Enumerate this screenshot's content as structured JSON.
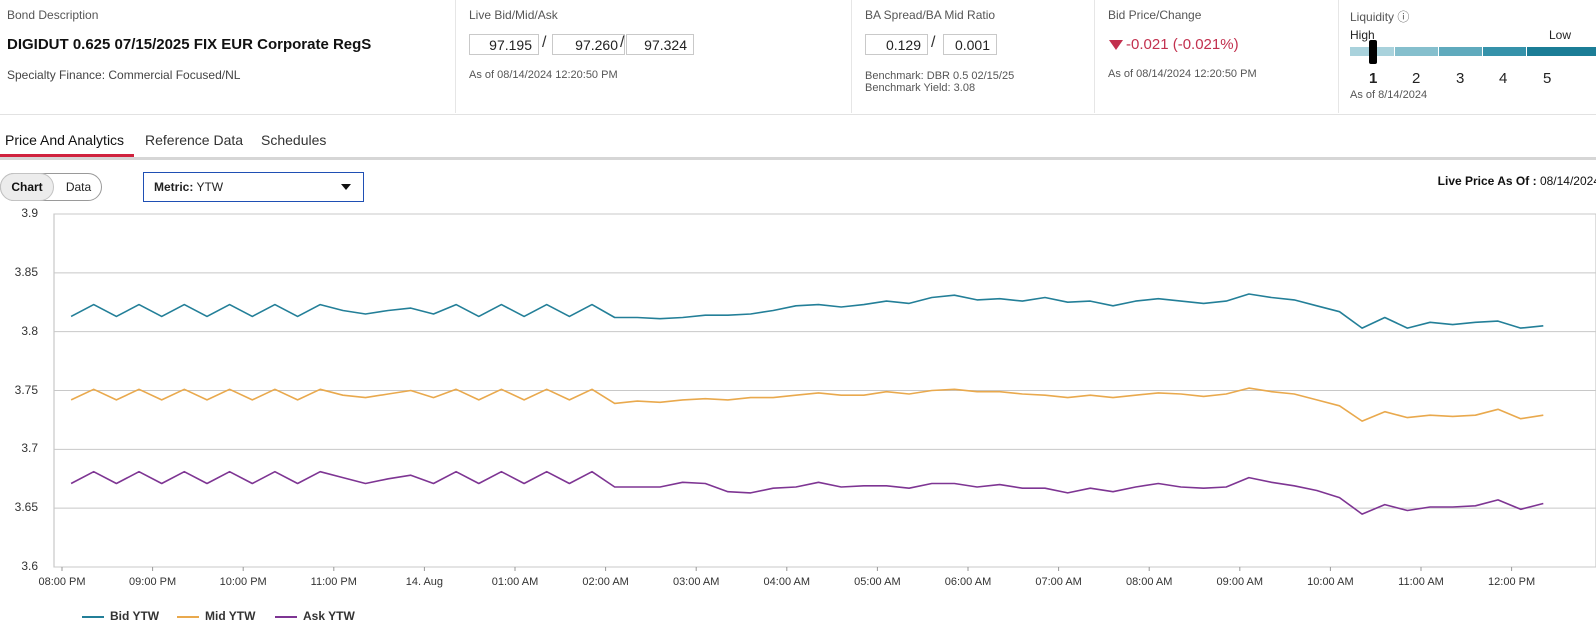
{
  "header": {
    "bond": {
      "label": "Bond Description",
      "title": "DIGIDUT 0.625 07/15/2025 FIX EUR Corporate RegS",
      "sector": "Specialty Finance: Commercial Focused/NL"
    },
    "live": {
      "label": "Live Bid/Mid/Ask",
      "bid": "97.195",
      "mid": "97.260",
      "ask": "97.324",
      "sep": "/",
      "as_of": "As of 08/14/2024 12:20:50 PM"
    },
    "spread": {
      "label": "BA Spread/BA Mid Ratio",
      "spread": "0.129",
      "ratio": "0.001",
      "sep": "/",
      "benchmark": "Benchmark: DBR 0.5 02/15/25",
      "benchmark_yield": "Benchmark Yield: 3.08"
    },
    "bid_change": {
      "label": "Bid Price/Change",
      "change": "-0.021 (-0.021%)",
      "direction_icon": "triangle-down-icon",
      "as_of": "As of 08/14/2024 12:20:50 PM",
      "color": "#c2304e"
    },
    "liquidity": {
      "label": "Liquidity",
      "info_icon": "ⓘ",
      "high": "High",
      "low": "Low",
      "levels": [
        "1",
        "2",
        "3",
        "4",
        "5"
      ],
      "selected": "1",
      "as_of": "As of 8/14/2024"
    }
  },
  "tabs": [
    {
      "label": "Price And Analytics",
      "active": true
    },
    {
      "label": "Reference Data",
      "active": false
    },
    {
      "label": "Schedules",
      "active": false
    }
  ],
  "view_toggle": {
    "chart": "Chart",
    "data": "Data",
    "selected": "Chart"
  },
  "metric": {
    "label": "Metric:",
    "value": "YTW"
  },
  "live_price": {
    "label": "Live Price As Of :",
    "value": "08/14/2024"
  },
  "chart_data": {
    "type": "line",
    "title": "",
    "xlabel": "",
    "ylabel": "",
    "ylim": [
      3.6,
      3.9
    ],
    "y_ticks": [
      "3.9",
      "3.85",
      "3.8",
      "3.75",
      "3.7",
      "3.65",
      "3.6"
    ],
    "x_ticks": [
      "08:00 PM",
      "09:00 PM",
      "10:00 PM",
      "11:00 PM",
      "14. Aug",
      "01:00 AM",
      "02:00 AM",
      "03:00 AM",
      "04:00 AM",
      "05:00 AM",
      "06:00 AM",
      "07:00 AM",
      "08:00 AM",
      "09:00 AM",
      "10:00 AM",
      "11:00 AM",
      "12:00 PM"
    ],
    "grid": true,
    "legend": "bottom-left",
    "x_hours_from_2000": [
      0.1,
      0.35,
      0.6,
      0.85,
      1.1,
      1.35,
      1.6,
      1.85,
      2.1,
      2.35,
      2.6,
      2.85,
      3.1,
      3.35,
      3.6,
      3.85,
      4.1,
      4.35,
      4.6,
      4.85,
      5.1,
      5.35,
      5.6,
      5.85,
      6.1,
      6.35,
      6.6,
      6.85,
      7.1,
      7.35,
      7.6,
      7.85,
      8.1,
      8.35,
      8.6,
      8.85,
      9.1,
      9.35,
      9.6,
      9.85,
      10.1,
      10.35,
      10.6,
      10.85,
      11.1,
      11.35,
      11.6,
      11.85,
      12.1,
      12.35,
      12.6,
      12.85,
      13.1,
      13.35,
      13.6,
      13.85,
      14.1,
      14.35,
      14.6,
      14.85,
      15.1,
      15.35,
      15.6,
      15.85,
      16.1,
      16.35
    ],
    "series": [
      {
        "name": "Bid YTW",
        "color": "#237f98",
        "values": [
          3.813,
          3.823,
          3.813,
          3.823,
          3.813,
          3.823,
          3.813,
          3.823,
          3.813,
          3.823,
          3.813,
          3.823,
          3.818,
          3.815,
          3.818,
          3.82,
          3.815,
          3.823,
          3.813,
          3.823,
          3.813,
          3.823,
          3.813,
          3.823,
          3.812,
          3.812,
          3.811,
          3.812,
          3.814,
          3.814,
          3.815,
          3.818,
          3.822,
          3.823,
          3.821,
          3.823,
          3.826,
          3.824,
          3.829,
          3.831,
          3.827,
          3.828,
          3.826,
          3.829,
          3.825,
          3.826,
          3.822,
          3.826,
          3.828,
          3.826,
          3.824,
          3.826,
          3.832,
          3.829,
          3.827,
          3.822,
          3.817,
          3.803,
          3.812,
          3.803,
          3.808,
          3.806,
          3.808,
          3.809,
          3.803,
          3.805
        ]
      },
      {
        "name": "Mid YTW",
        "color": "#e9a94d",
        "values": [
          3.742,
          3.751,
          3.742,
          3.751,
          3.742,
          3.751,
          3.742,
          3.751,
          3.742,
          3.751,
          3.742,
          3.751,
          3.746,
          3.744,
          3.747,
          3.75,
          3.744,
          3.751,
          3.742,
          3.751,
          3.742,
          3.751,
          3.742,
          3.751,
          3.739,
          3.741,
          3.74,
          3.742,
          3.743,
          3.742,
          3.744,
          3.744,
          3.746,
          3.748,
          3.746,
          3.746,
          3.749,
          3.747,
          3.75,
          3.751,
          3.749,
          3.749,
          3.747,
          3.746,
          3.744,
          3.746,
          3.744,
          3.746,
          3.748,
          3.747,
          3.745,
          3.747,
          3.752,
          3.749,
          3.747,
          3.742,
          3.737,
          3.724,
          3.732,
          3.727,
          3.729,
          3.728,
          3.729,
          3.734,
          3.726,
          3.729
        ]
      },
      {
        "name": "Ask YTW",
        "color": "#7e3593",
        "values": [
          3.671,
          3.681,
          3.671,
          3.681,
          3.671,
          3.681,
          3.671,
          3.681,
          3.671,
          3.681,
          3.671,
          3.681,
          3.676,
          3.671,
          3.675,
          3.678,
          3.671,
          3.681,
          3.671,
          3.681,
          3.671,
          3.681,
          3.671,
          3.681,
          3.668,
          3.668,
          3.668,
          3.672,
          3.671,
          3.664,
          3.663,
          3.667,
          3.668,
          3.672,
          3.668,
          3.669,
          3.669,
          3.667,
          3.671,
          3.671,
          3.668,
          3.67,
          3.667,
          3.667,
          3.663,
          3.667,
          3.664,
          3.668,
          3.671,
          3.668,
          3.667,
          3.668,
          3.676,
          3.672,
          3.669,
          3.665,
          3.659,
          3.645,
          3.653,
          3.648,
          3.651,
          3.651,
          3.652,
          3.657,
          3.649,
          3.654
        ]
      }
    ]
  }
}
